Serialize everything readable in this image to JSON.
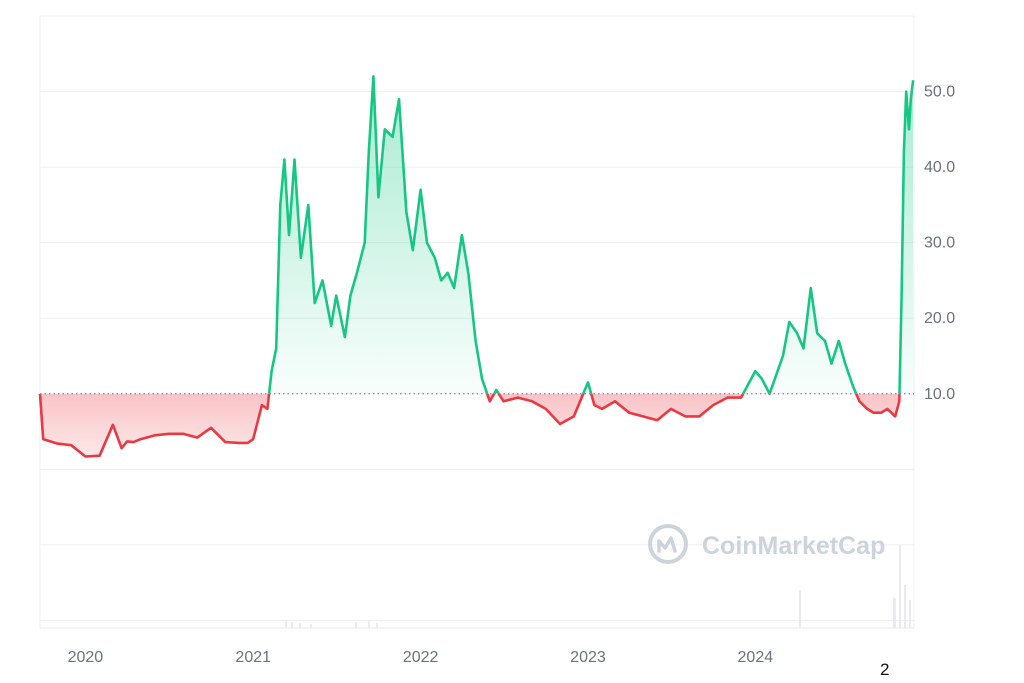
{
  "watermark": {
    "text": "CoinMarketCap",
    "icon": "coinmarketcap-logo-icon"
  },
  "page_number": "2",
  "colors": {
    "up": "#16c784",
    "down": "#ea3943",
    "grid": "#eef0f3",
    "baseline": "#808a9d",
    "axis_text": "#6b7280"
  },
  "chart_data": {
    "type": "area",
    "title": "",
    "xlabel": "",
    "ylabel": "",
    "baseline_value": 10.0,
    "y_ticks": [
      "10.0",
      "20.0",
      "30.0",
      "40.0",
      "50.0"
    ],
    "y_tick_values": [
      10,
      20,
      30,
      40,
      50
    ],
    "x_ticks": [
      "2020",
      "2021",
      "2022",
      "2023",
      "2024"
    ],
    "x_tick_values": [
      "2020-01-01",
      "2021-01-01",
      "2022-01-01",
      "2023-01-01",
      "2024-01-01"
    ],
    "ylim": [
      -21,
      60
    ],
    "xlim": [
      "2019-09-24",
      "2024-12-12"
    ],
    "grid": true,
    "legend": "none",
    "series": [
      {
        "x": [
          "2019-09-24",
          "2019-10-01",
          "2019-11-01",
          "2019-12-01",
          "2020-01-01",
          "2020-02-01",
          "2020-03-01",
          "2020-03-20",
          "2020-04-01",
          "2020-04-15",
          "2020-05-01",
          "2020-06-01",
          "2020-07-01",
          "2020-08-01",
          "2020-09-01",
          "2020-10-01",
          "2020-11-01",
          "2020-12-01",
          "2020-12-20",
          "2021-01-01",
          "2021-01-20",
          "2021-02-01",
          "2021-02-10",
          "2021-02-20",
          "2021-03-01",
          "2021-03-10",
          "2021-03-20",
          "2021-04-01",
          "2021-04-15",
          "2021-05-01",
          "2021-05-15",
          "2021-06-01",
          "2021-06-20",
          "2021-07-01",
          "2021-07-20",
          "2021-08-01",
          "2021-08-15",
          "2021-09-01",
          "2021-09-10",
          "2021-09-20",
          "2021-10-01",
          "2021-10-15",
          "2021-11-01",
          "2021-11-15",
          "2021-12-01",
          "2021-12-15",
          "2022-01-01",
          "2022-01-15",
          "2022-02-01",
          "2022-02-15",
          "2022-03-01",
          "2022-03-15",
          "2022-04-01",
          "2022-04-15",
          "2022-05-01",
          "2022-05-15",
          "2022-06-01",
          "2022-06-15",
          "2022-07-01",
          "2022-08-01",
          "2022-09-01",
          "2022-10-01",
          "2022-11-01",
          "2022-12-01",
          "2023-01-01",
          "2023-01-15",
          "2023-02-01",
          "2023-03-01",
          "2023-04-01",
          "2023-05-01",
          "2023-06-01",
          "2023-07-01",
          "2023-08-01",
          "2023-09-01",
          "2023-10-01",
          "2023-11-01",
          "2023-12-01",
          "2024-01-01",
          "2024-01-15",
          "2024-02-01",
          "2024-03-01",
          "2024-03-15",
          "2024-04-01",
          "2024-04-15",
          "2024-05-01",
          "2024-05-15",
          "2024-06-01",
          "2024-06-15",
          "2024-07-01",
          "2024-07-15",
          "2024-08-01",
          "2024-08-15",
          "2024-09-01",
          "2024-09-15",
          "2024-10-01",
          "2024-10-15",
          "2024-11-01",
          "2024-11-10",
          "2024-11-15",
          "2024-11-20",
          "2024-11-25",
          "2024-12-01",
          "2024-12-05",
          "2024-12-10"
        ],
        "y": [
          10.0,
          4.0,
          3.4,
          3.2,
          1.7,
          1.8,
          5.9,
          2.8,
          3.7,
          3.6,
          4.0,
          4.5,
          4.7,
          4.7,
          4.2,
          5.5,
          3.6,
          3.5,
          3.5,
          4.0,
          8.5,
          8.0,
          13.0,
          16.0,
          35.0,
          41.0,
          31.0,
          41.0,
          28.0,
          35.0,
          22.0,
          25.0,
          19.0,
          23.0,
          17.5,
          23.0,
          26.0,
          30.0,
          42.0,
          52.0,
          36.0,
          45.0,
          44.0,
          49.0,
          34.0,
          29.0,
          37.0,
          30.0,
          28.0,
          25.0,
          26.0,
          24.0,
          31.0,
          26.0,
          17.0,
          12.0,
          9.0,
          10.5,
          9.0,
          9.5,
          9.0,
          8.0,
          6.0,
          7.0,
          11.5,
          8.5,
          8.0,
          9.0,
          7.5,
          7.0,
          6.5,
          8.0,
          7.0,
          7.0,
          8.5,
          9.5,
          9.5,
          13.0,
          12.0,
          10.0,
          15.0,
          19.5,
          18.0,
          16.0,
          24.0,
          18.0,
          17.0,
          14.0,
          17.0,
          14.0,
          11.0,
          9.0,
          8.0,
          7.5,
          7.5,
          8.0,
          7.0,
          9.0,
          23.0,
          42.0,
          50.0,
          45.0,
          49.0,
          51.5
        ]
      }
    ]
  }
}
